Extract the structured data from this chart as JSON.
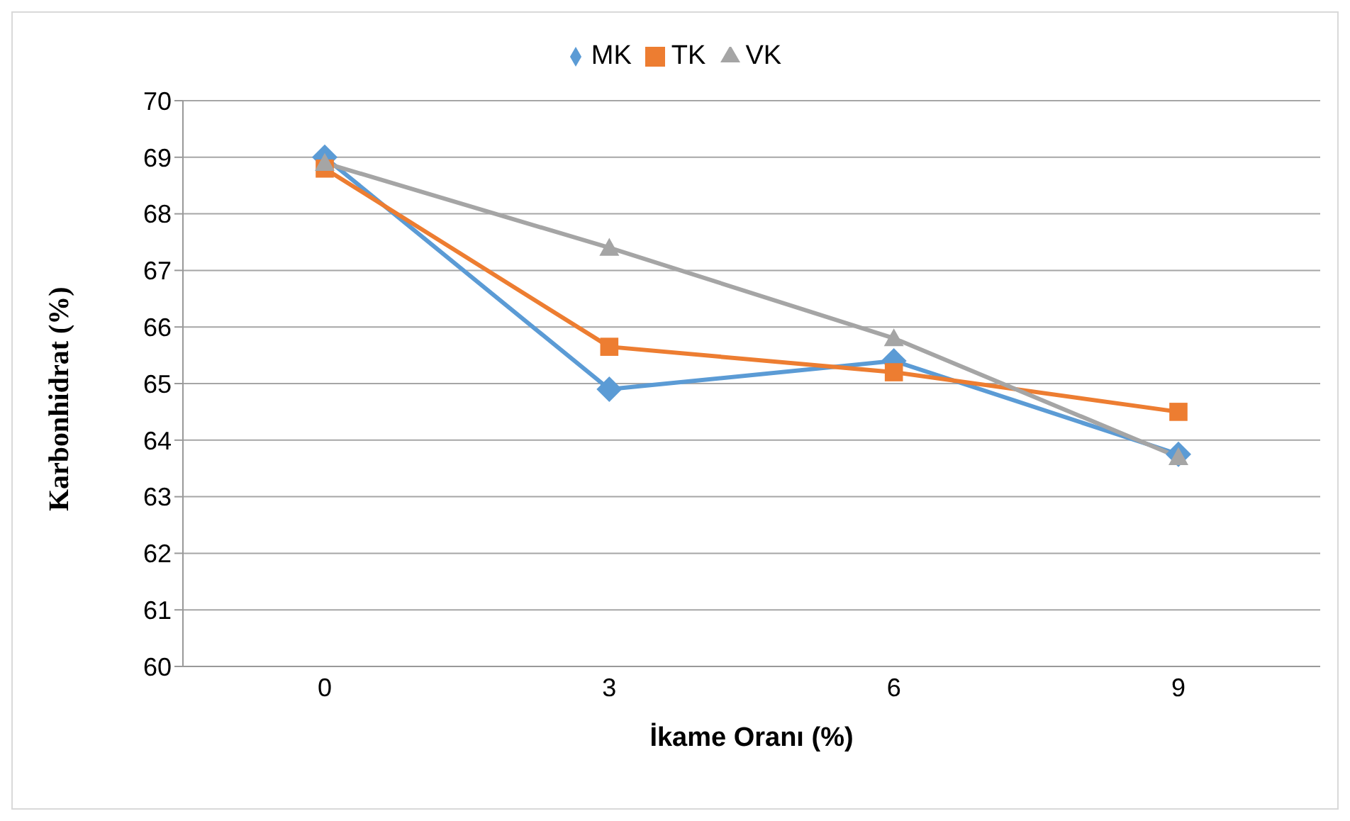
{
  "chart_data": {
    "type": "line",
    "xlabel": "İkame Oranı (%)",
    "ylabel": "Karbonhidrat (%)",
    "categories": [
      "0",
      "3",
      "6",
      "9"
    ],
    "series": [
      {
        "name": "MK",
        "color": "#5b9bd5",
        "marker": "diamond",
        "values": [
          69.0,
          64.9,
          65.4,
          63.75
        ]
      },
      {
        "name": "TK",
        "color": "#ed7d31",
        "marker": "square",
        "values": [
          68.8,
          65.65,
          65.2,
          64.5
        ]
      },
      {
        "name": "VK",
        "color": "#a5a5a5",
        "marker": "triangle",
        "values": [
          68.9,
          67.4,
          65.8,
          63.7
        ]
      }
    ],
    "ylim": [
      60,
      70
    ],
    "yticks": [
      60,
      61,
      62,
      63,
      64,
      65,
      66,
      67,
      68,
      69,
      70
    ],
    "grid": "y",
    "legend": "top"
  }
}
